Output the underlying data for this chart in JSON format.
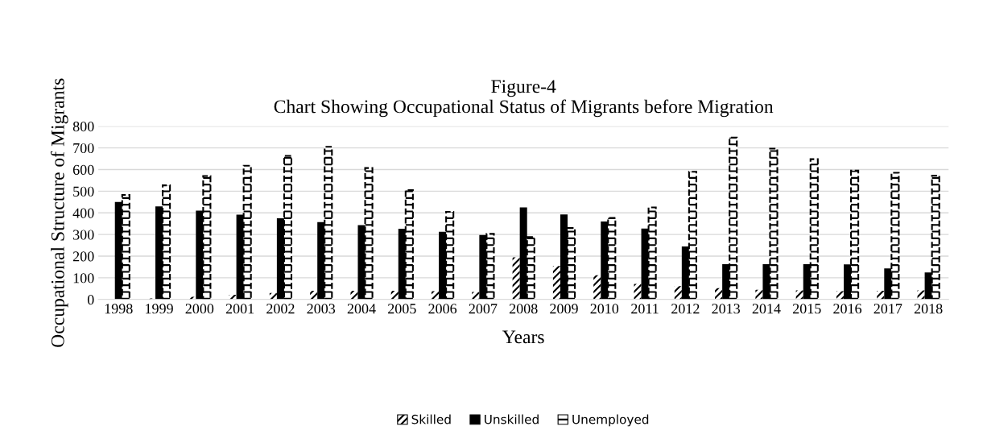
{
  "chart_data": {
    "type": "bar",
    "title": "Figure-4\nChart Showing Occupational Status of Migrants before Migration",
    "xlabel": "Years",
    "ylabel": "Occupational Structure of Migrants",
    "categories": [
      "1998",
      "1999",
      "2000",
      "2001",
      "2002",
      "2003",
      "2004",
      "2005",
      "2006",
      "2007",
      "2008",
      "2009",
      "2010",
      "2011",
      "2012",
      "2013",
      "2014",
      "2015",
      "2016",
      "2017",
      "2018"
    ],
    "series": [
      {
        "name": "Skilled",
        "color": "#000000",
        "values": [
          0,
          5,
          12,
          22,
          30,
          40,
          40,
          40,
          38,
          35,
          195,
          155,
          112,
          72,
          62,
          52,
          45,
          42,
          38,
          40,
          42
        ]
      },
      {
        "name": "Unskilled",
        "color": "#000000",
        "values": [
          450,
          430,
          410,
          392,
          375,
          357,
          343,
          327,
          313,
          298,
          425,
          393,
          360,
          328,
          245,
          163,
          163,
          163,
          162,
          143,
          125
        ]
      },
      {
        "name": "Unemployed",
        "color": "#000000",
        "values": [
          483,
          527,
          570,
          618,
          663,
          705,
          607,
          505,
          405,
          303,
          288,
          330,
          377,
          425,
          590,
          748,
          697,
          648,
          595,
          585,
          572
        ]
      }
    ],
    "ylim": [
      0,
      800
    ],
    "yticks": [
      0,
      100,
      200,
      300,
      400,
      500,
      600,
      700,
      800
    ],
    "grid": "y",
    "legend": "bottom"
  }
}
